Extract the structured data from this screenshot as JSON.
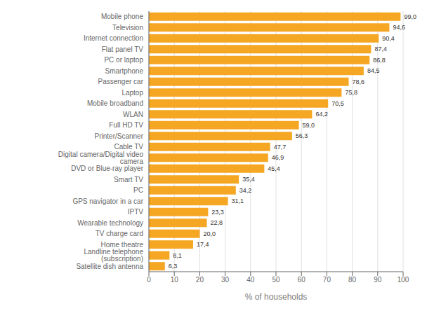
{
  "chart_data": {
    "type": "bar",
    "orientation": "horizontal",
    "xlabel": "% of households",
    "categories": [
      "Satellite dish antenna",
      "Landline telephone (subscription)",
      "Home theatre",
      "TV charge card",
      "Wearable technology",
      "IPTV",
      "GPS navigator in a car",
      "PC",
      "Smart TV",
      "DVD or Blue-ray player",
      "Digital camera/Digital video camera",
      "Cable TV",
      "Printer/Scanner",
      "Full HD TV",
      "WLAN",
      "Mobile broadband",
      "Laptop",
      "Passenger car",
      "Smartphone",
      "PC or laptop",
      "Flat panel TV",
      "Internet connection",
      "Television",
      "Mobile phone"
    ],
    "values": [
      6.3,
      8.1,
      17.4,
      20.0,
      22.8,
      23.3,
      31.1,
      34.2,
      35.4,
      45.4,
      46.9,
      47.7,
      56.3,
      59.0,
      64.2,
      70.5,
      75.8,
      78.6,
      84.5,
      86.8,
      87.4,
      90.4,
      94.6,
      99.0
    ],
    "value_labels": [
      "6,3",
      "8,1",
      "17,4",
      "20,0",
      "22,8",
      "23,3",
      "31,1",
      "34,2",
      "35,4",
      "45,4",
      "46,9",
      "47,7",
      "56,3",
      "59,0",
      "64,2",
      "70,5",
      "75,8",
      "78,6",
      "84,5",
      "86,8",
      "87,4",
      "90,4",
      "94,6",
      "99,0"
    ],
    "data_labels": true,
    "color": "#F5A623",
    "xlim": [
      0,
      100
    ],
    "xticks": [
      0,
      10,
      20,
      30,
      40,
      50,
      60,
      70,
      80,
      90,
      100
    ],
    "grid": true
  }
}
